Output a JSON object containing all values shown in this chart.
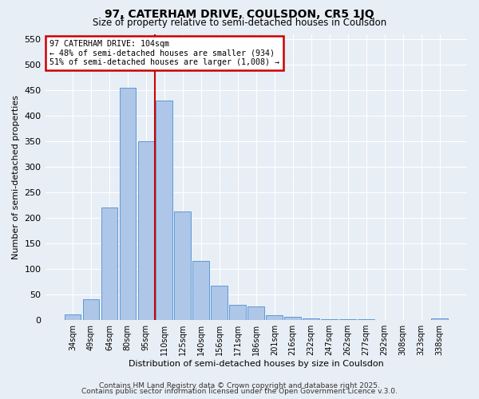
{
  "title": "97, CATERHAM DRIVE, COULSDON, CR5 1JQ",
  "subtitle": "Size of property relative to semi-detached houses in Coulsdon",
  "xlabel": "Distribution of semi-detached houses by size in Coulsdon",
  "ylabel": "Number of semi-detached properties",
  "bar_labels": [
    "34sqm",
    "49sqm",
    "64sqm",
    "80sqm",
    "95sqm",
    "110sqm",
    "125sqm",
    "140sqm",
    "156sqm",
    "171sqm",
    "186sqm",
    "201sqm",
    "216sqm",
    "232sqm",
    "247sqm",
    "262sqm",
    "277sqm",
    "292sqm",
    "308sqm",
    "323sqm",
    "338sqm"
  ],
  "bar_values": [
    11,
    40,
    220,
    455,
    350,
    430,
    213,
    115,
    68,
    30,
    27,
    9,
    7,
    4,
    2,
    2,
    1,
    0,
    0,
    0,
    4
  ],
  "bar_color": "#aec6e8",
  "bar_edgecolor": "#5b9bd5",
  "vline_x": 4.5,
  "vline_color": "#cc0000",
  "annotation_title": "97 CATERHAM DRIVE: 104sqm",
  "annotation_line1": "← 48% of semi-detached houses are smaller (934)",
  "annotation_line2": "51% of semi-detached houses are larger (1,008) →",
  "annotation_box_color": "#cc0000",
  "ylim": [
    0,
    560
  ],
  "yticks": [
    0,
    50,
    100,
    150,
    200,
    250,
    300,
    350,
    400,
    450,
    500,
    550
  ],
  "bg_color": "#e8eef5",
  "footer1": "Contains HM Land Registry data © Crown copyright and database right 2025.",
  "footer2": "Contains public sector information licensed under the Open Government Licence v.3.0."
}
